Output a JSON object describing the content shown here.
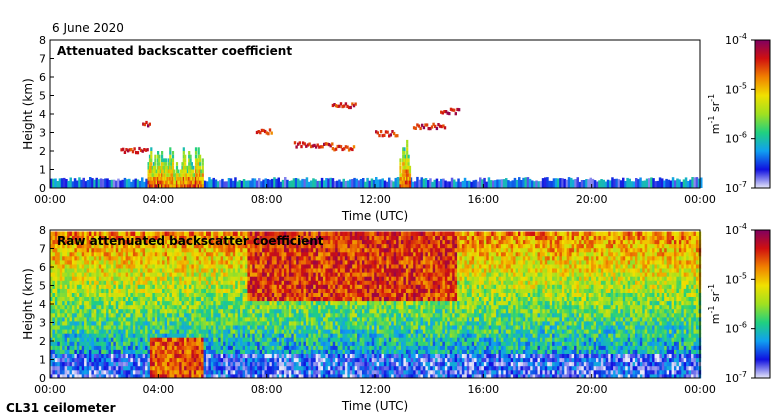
{
  "header": {
    "date": "6 June 2020"
  },
  "footer": {
    "instrument": "CL31 ceilometer"
  },
  "colorbar": {
    "unit_base": "m",
    "unit_exp1": "-1",
    "unit_mid": " sr",
    "unit_exp2": "-1",
    "tick_labels": [
      {
        "base": "10",
        "exp": "-4",
        "log": -4
      },
      {
        "base": "10",
        "exp": "-5",
        "log": -5
      },
      {
        "base": "10",
        "exp": "-6",
        "log": -6
      },
      {
        "base": "10",
        "exp": "-7",
        "log": -7
      }
    ],
    "colors": [
      "#e8e8f8",
      "#1010e0",
      "#10a0f0",
      "#20d080",
      "#a0e020",
      "#f0e000",
      "#f08000",
      "#d01010",
      "#800060"
    ]
  },
  "chart_data": [
    {
      "type": "heatmap",
      "title": "Attenuated backscatter coefficient",
      "xlabel": "Time (UTC)",
      "ylabel": "Height (km)",
      "xlim": [
        0,
        24
      ],
      "ylim": [
        0,
        8
      ],
      "x_ticks": [
        "00:00",
        "04:00",
        "08:00",
        "12:00",
        "16:00",
        "20:00",
        "00:00"
      ],
      "y_ticks": [
        "0",
        "1",
        "2",
        "3",
        "4",
        "5",
        "6",
        "7",
        "8"
      ],
      "colorbar_range_log10": [
        -7,
        -4
      ],
      "features": [
        {
          "name": "boundary layer aerosol",
          "time_start": 0,
          "time_end": 24,
          "height_top_km": 0.6,
          "log10_value": -6.4
        },
        {
          "name": "rain / dense aerosol column",
          "time_start": 3.6,
          "time_end": 5.6,
          "height_top_km": 2.2,
          "log10_value": -4.6
        },
        {
          "name": "low cloud 02:30-03:30",
          "time_start": 2.6,
          "time_end": 3.6,
          "height_km": 2.0,
          "log10_value": -4.4
        },
        {
          "name": "cloud ~3.5 km 03:30",
          "time_start": 3.4,
          "time_end": 3.7,
          "height_km": 3.4,
          "log10_value": -4.3
        },
        {
          "name": "cloud 08:00",
          "time_start": 7.6,
          "time_end": 8.2,
          "height_km": 3.0,
          "log10_value": -4.5
        },
        {
          "name": "cloud 09:00-10:00",
          "time_start": 9.0,
          "time_end": 10.4,
          "height_km": 2.3,
          "log10_value": -4.4
        },
        {
          "name": "cloud 10:30-11:00",
          "time_start": 10.4,
          "time_end": 11.2,
          "height_km": 2.1,
          "log10_value": -4.5
        },
        {
          "name": "cloud ~4.4 km 11:00",
          "time_start": 10.4,
          "time_end": 11.3,
          "height_km": 4.4,
          "log10_value": -4.4
        },
        {
          "name": "cloud ~3 km 12:00",
          "time_start": 12.0,
          "time_end": 12.8,
          "height_km": 2.9,
          "log10_value": -4.4
        },
        {
          "name": "precipitation column 13:00",
          "time_start": 12.9,
          "time_end": 13.3,
          "height_top_km": 2.6,
          "log10_value": -4.5
        },
        {
          "name": "cloud ~3.2 km 13:30-14:30",
          "time_start": 13.4,
          "time_end": 14.6,
          "height_km": 3.3,
          "log10_value": -4.3
        },
        {
          "name": "cloud ~4.1 km 14:30-15:00",
          "time_start": 14.4,
          "time_end": 15.1,
          "height_km": 4.1,
          "log10_value": -4.3
        }
      ]
    },
    {
      "type": "heatmap",
      "title": "Raw attenuated backscatter coefficient",
      "xlabel": "Time (UTC)",
      "ylabel": "Height (km)",
      "xlim": [
        0,
        24
      ],
      "ylim": [
        0,
        8
      ],
      "x_ticks": [
        "00:00",
        "04:00",
        "08:00",
        "12:00",
        "16:00",
        "20:00",
        "00:00"
      ],
      "y_ticks": [
        "0",
        "1",
        "2",
        "3",
        "4",
        "5",
        "6",
        "7",
        "8"
      ],
      "colorbar_range_log10": [
        -7,
        -4
      ],
      "features": [
        {
          "name": "noise field above 1 km",
          "time_start": 0,
          "time_end": 24,
          "height_range_km": [
            1.0,
            7.7
          ],
          "log10_value_range": [
            -6.2,
            -4.8
          ]
        },
        {
          "name": "elevated noise 07:00-15:00",
          "time_start": 7.2,
          "time_end": 15.0,
          "height_range_km": [
            4.0,
            7.7
          ],
          "log10_value": -4.5
        },
        {
          "name": "low signal near surface",
          "time_start": 0,
          "time_end": 24,
          "height_range_km": [
            0,
            1.2
          ],
          "log10_value": -6.6
        },
        {
          "name": "rain / dense aerosol column",
          "time_start": 3.6,
          "time_end": 5.6,
          "height_top_km": 2.2,
          "log10_value": -4.6
        }
      ]
    }
  ]
}
